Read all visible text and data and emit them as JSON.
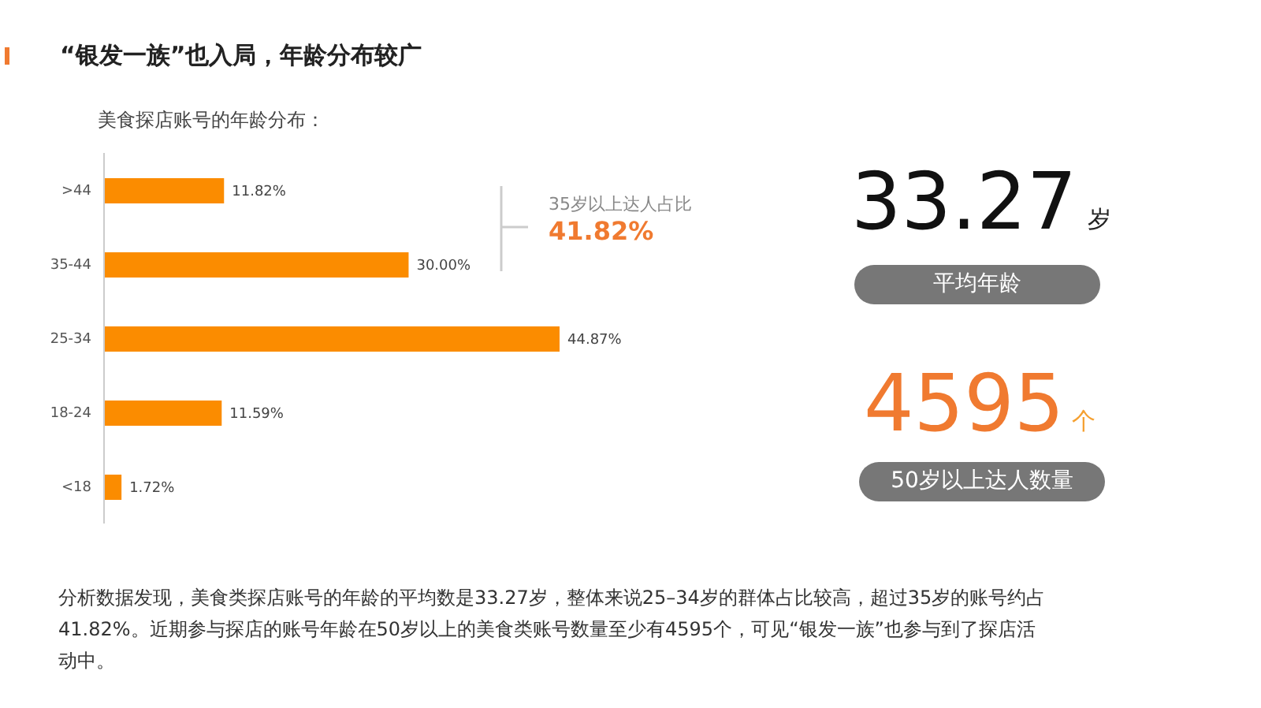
{
  "chart_data": {
    "type": "bar",
    "orientation": "horizontal",
    "title": "“银发一族”也入局，年龄分布较广",
    "subtitle": "美食探店账号的年龄分布：",
    "categories": [
      ">44",
      "35-44",
      "25-34",
      "18-24",
      "<18"
    ],
    "values": [
      11.82,
      30.0,
      44.87,
      11.59,
      1.72
    ],
    "value_labels": [
      "11.82%",
      "30.00%",
      "44.87%",
      "11.59%",
      "1.72%"
    ],
    "color": "#fb8c00",
    "grid": false,
    "legend": false,
    "annotations": [
      "35岁以上达人占比",
      "41.82%",
      "33.27",
      "岁",
      "平均年龄",
      "4595",
      "个",
      "50岁以上达人数量",
      "分析数据发现，美食类探店账号的年龄的平均数是33.27岁，整体来说25–34岁的群体占比较高，超过35岁的账号约占41.82%。近期参与探店的账号年龄在50岁以上的美食类账号数量至少有4595个，可见“银发一族”也参与到了探店活动中。"
    ]
  }
}
